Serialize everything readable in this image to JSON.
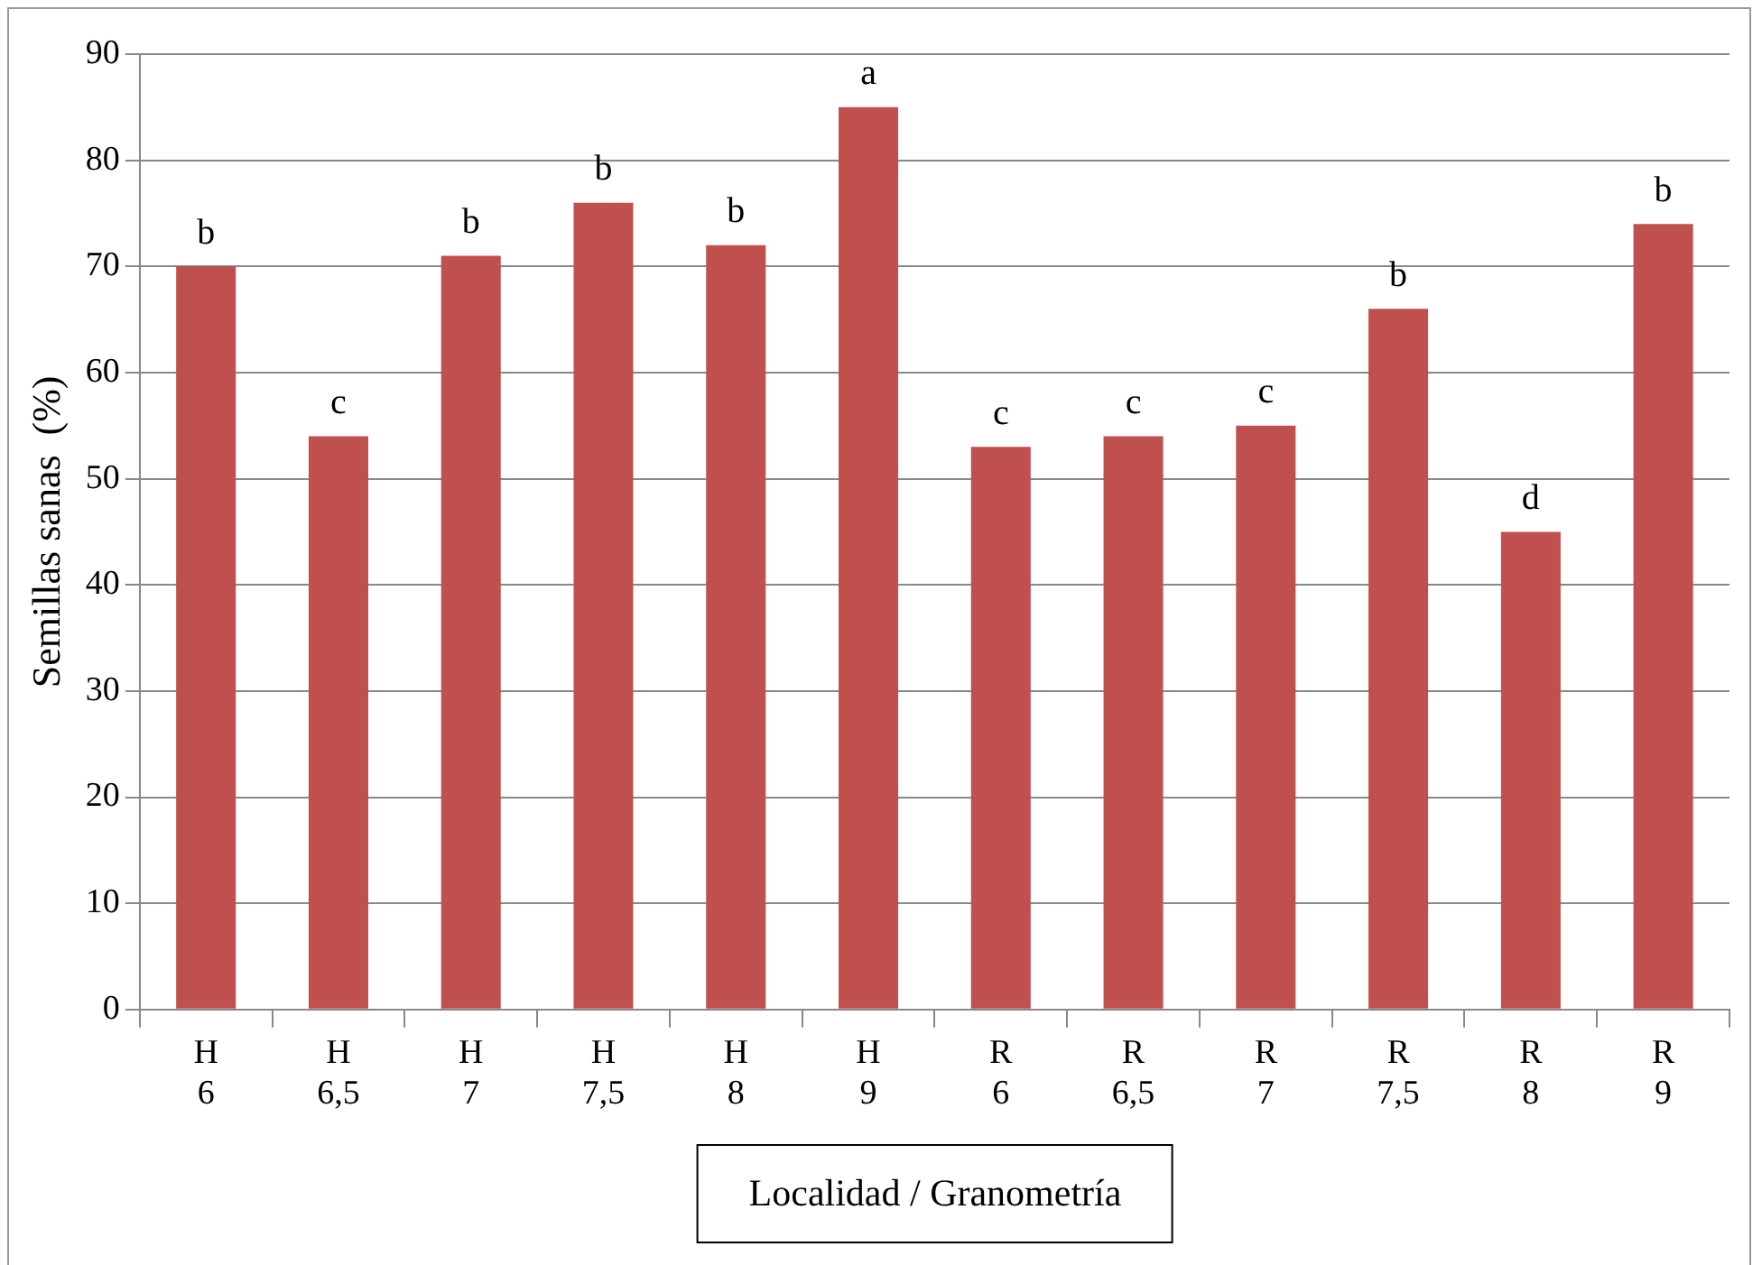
{
  "chart_data": {
    "type": "bar",
    "xlabel": "Localidad / Granometría",
    "ylabel": "Semillas sanas  (%)",
    "categories": [
      "H 6",
      "H 6,5",
      "H 7",
      "H 7,5",
      "H 8",
      "H 9",
      "R 6",
      "R 6,5",
      "R 7",
      "R 7,5",
      "R 8",
      "R 9"
    ],
    "values": [
      70,
      54,
      71,
      76,
      72,
      85,
      53,
      54,
      55,
      66,
      45,
      74
    ],
    "color": "#c0504d",
    "ylim": [
      0,
      90
    ],
    "yticks": [
      0,
      10,
      20,
      30,
      40,
      50,
      60,
      70,
      80,
      90
    ],
    "grid": "y",
    "annotations": [
      {
        "text": "b",
        "x": "H 6",
        "y": 70
      },
      {
        "text": "c",
        "x": "H 6,5",
        "y": 54
      },
      {
        "text": "b",
        "x": "H 7",
        "y": 71
      },
      {
        "text": "b",
        "x": "H 7,5",
        "y": 76
      },
      {
        "text": "b",
        "x": "H 8",
        "y": 72
      },
      {
        "text": "a",
        "x": "H 9",
        "y": 85
      },
      {
        "text": "c",
        "x": "R 6",
        "y": 53
      },
      {
        "text": "c",
        "x": "R 6,5",
        "y": 54
      },
      {
        "text": "c",
        "x": "R 7",
        "y": 55
      },
      {
        "text": "b",
        "x": "R 7,5",
        "y": 66
      },
      {
        "text": "d",
        "x": "R 8",
        "y": 45
      },
      {
        "text": "b",
        "x": "R 9",
        "y": 74
      }
    ]
  }
}
